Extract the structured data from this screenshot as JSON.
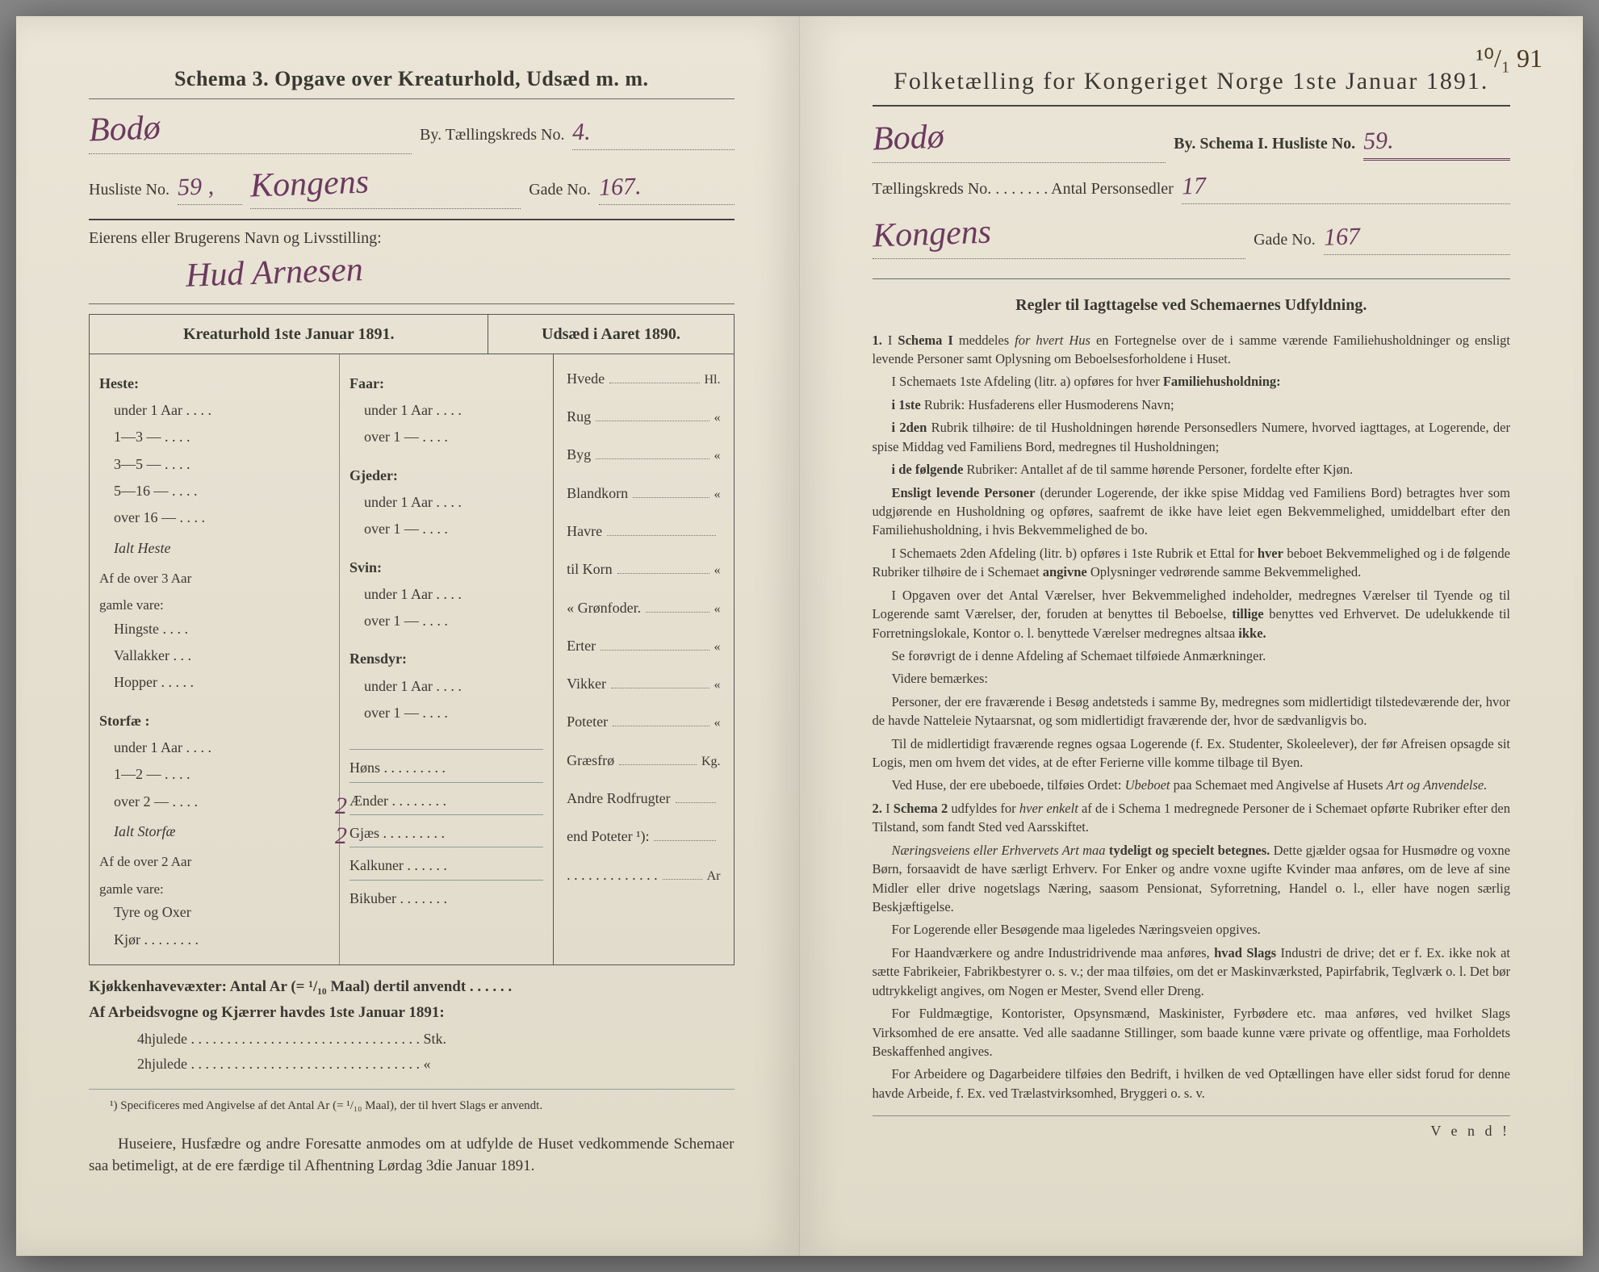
{
  "left": {
    "schema_title": "Schema 3.  Opgave over Kreaturhold, Udsæd m. m.",
    "city_hw": "Bodø",
    "by_label": "By.  Tællingskreds No.",
    "kreds_hw": "4.",
    "husliste_label": "Husliste No.",
    "husliste_hw": "59 ,",
    "gade_hw": "Kongens",
    "gade_label": "Gade No.",
    "gadeno_hw": "167.",
    "owner_label": "Eierens eller Brugerens Navn og Livsstilling:",
    "owner_hw": "Hud Arnesen",
    "table_head_left": "Kreaturhold 1ste Januar 1891.",
    "table_head_right": "Udsæd i Aaret 1890.",
    "heste": {
      "title": "Heste:",
      "rows": [
        "under 1 Aar . . . .",
        "1—3   —   . . . .",
        "3—5   —   . . . .",
        "5—16  —   . . . .",
        "over 16 —  . . . ."
      ],
      "ialt": "Ialt Heste",
      "af_over": "Af de over 3 Aar",
      "gamle": "gamle vare:",
      "sub": [
        "Hingste . . . .",
        "Vallakker . . .",
        "Hopper . . . . ."
      ]
    },
    "storfae": {
      "title": "Storfæ :",
      "rows": [
        "under 1 Aar . . . .",
        "1—2   —   . . . .",
        "over 2  —   . . . ."
      ],
      "ialt": "Ialt Storfæ",
      "af_over": "Af de over 2 Aar",
      "gamle": "gamle vare:",
      "sub": [
        "Tyre og Oxer",
        "Kjør . . . . . . . ."
      ]
    },
    "mid": {
      "faar": "Faar:",
      "faar_rows": [
        "under 1 Aar . . . .",
        "over 1  —  . . . ."
      ],
      "gjeder": "Gjeder:",
      "gjeder_rows": [
        "under 1 Aar . . . .",
        "over 1  —  . . . ."
      ],
      "svin": "Svin:",
      "svin_rows": [
        "under 1 Aar . . . .",
        "over 1  —  . . . ."
      ],
      "rensdyr": "Rensdyr:",
      "rensdyr_rows": [
        "under 1 Aar . . . .",
        "over 1  —  . . . ."
      ],
      "misc": [
        "Høns  . . . . . . . . .",
        "Ænder . . . . . . . .",
        "Gjæs . . . . . . . . .",
        "Kalkuner . . . . . .",
        "Bikuber  . . . . . . ."
      ]
    },
    "seed": [
      {
        "label": "Hvede",
        "unit": "Hl."
      },
      {
        "label": "Rug",
        "unit": "«"
      },
      {
        "label": "Byg",
        "unit": "«"
      },
      {
        "label": "Blandkorn",
        "unit": "«"
      },
      {
        "label": "Havre",
        "unit": ""
      },
      {
        "label": "   til Korn",
        "unit": "«"
      },
      {
        "label": "   « Grønfoder.",
        "unit": "«"
      },
      {
        "label": "Erter",
        "unit": "«"
      },
      {
        "label": "Vikker",
        "unit": "«"
      },
      {
        "label": "Poteter",
        "unit": "«"
      },
      {
        "label": "Græsfrø",
        "unit": "Kg."
      },
      {
        "label": "Andre Rodfrugter",
        "unit": ""
      },
      {
        "label": "   end Poteter ¹):",
        "unit": ""
      },
      {
        "label": ". . . . . . . . . . . . .",
        "unit": "Ar"
      }
    ],
    "storfae_over2": "2",
    "storfae_ialt": "2",
    "below1": "Kjøkkenhavevæxter:  Antal Ar (= ¹/₁₀ Maal) dertil anvendt . . . . . .",
    "below2": "Af Arbeidsvogne og Kjærrer havdes 1ste Januar 1891:",
    "below3": "4hjulede . . . . . . . . . . . . . . . . . . . . . . . . . . . . . . . . Stk.",
    "below4": "2hjulede  . . . . . . . . . . . . . . . . . . . . . . . . . . . . . . . .  «",
    "footnote": "¹) Specificeres med Angivelse af det Antal Ar (= ¹/₁₀ Maal), der til hvert Slags er anvendt.",
    "footer": "Huseiere, Husfædre og andre Foresatte anmodes om at udfylde de Huset vedkommende Schemaer saa betimeligt, at de ere færdige til Afhentning Lørdag 3die Januar 1891."
  },
  "right": {
    "corner": "¹⁰/₁ 91",
    "title": "Folketælling for Kongeriget Norge 1ste Januar 1891.",
    "city_hw": "Bodø",
    "by": "By.  Schema I.  Husliste No.",
    "husliste_hw": "59.",
    "kreds_label": "Tællingskreds No. . . . . . . .   Antal Personsedler",
    "personsedler_hw": "17",
    "gade_hw": "Kongens",
    "gade_label": "Gade No.",
    "gadeno_hw": "167",
    "rules_title": "Regler til Iagttagelse ved Schemaernes Udfyldning.",
    "vend": "V e n d !"
  }
}
